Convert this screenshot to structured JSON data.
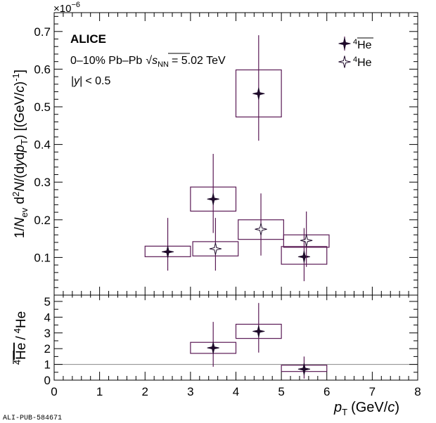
{
  "chart_data": [
    {
      "type": "scatter",
      "panel": "top",
      "title": "",
      "xlabel_main": "p",
      "xlabel_sub": "T",
      "xlabel_unit": "(GeV/",
      "xlabel_unit_c": "c",
      "xlabel_close": ")",
      "ylabel": "1/N_ev d^2N/(dy dp_T) [(GeV/c)^-1]",
      "y_multiplier": "×10",
      "y_multiplier_exp": "−6",
      "xlim": [
        0,
        8
      ],
      "ylim": [
        0,
        0.75
      ],
      "xticks": [
        "0",
        "1",
        "2",
        "3",
        "4",
        "5",
        "6",
        "7",
        "8"
      ],
      "yticks": [
        "0.1",
        "0.2",
        "0.3",
        "0.4",
        "0.5",
        "0.6",
        "0.7"
      ],
      "series": [
        {
          "name": "anti-4He",
          "legend_label": "He",
          "legend_sup": "4",
          "marker": "filled-star",
          "points": [
            {
              "x": 2.5,
              "y": 0.115,
              "stat_lo": 0.065,
              "stat_hi": 0.205,
              "sys_lo": 0.102,
              "sys_hi": 0.13,
              "bin_lo": 2.0,
              "bin_hi": 3.0
            },
            {
              "x": 3.5,
              "y": 0.255,
              "stat_lo": 0.165,
              "stat_hi": 0.375,
              "sys_lo": 0.223,
              "sys_hi": 0.287,
              "bin_lo": 3.0,
              "bin_hi": 4.0
            },
            {
              "x": 4.5,
              "y": 0.535,
              "stat_lo": 0.41,
              "stat_hi": 0.69,
              "sys_lo": 0.473,
              "sys_hi": 0.598,
              "bin_lo": 4.0,
              "bin_hi": 5.0
            },
            {
              "x": 5.5,
              "y": 0.102,
              "stat_lo": 0.037,
              "stat_hi": 0.178,
              "sys_lo": 0.082,
              "sys_hi": 0.129,
              "bin_lo": 5.0,
              "bin_hi": 6.0
            }
          ]
        },
        {
          "name": "4He",
          "legend_label": "He",
          "legend_sup": "4",
          "marker": "open-star",
          "points": [
            {
              "x": 3.55,
              "y": 0.123,
              "stat_lo": 0.065,
              "stat_hi": 0.205,
              "sys_lo": 0.104,
              "sys_hi": 0.142,
              "bin_lo": 3.05,
              "bin_hi": 4.05
            },
            {
              "x": 4.55,
              "y": 0.175,
              "stat_lo": 0.105,
              "stat_hi": 0.27,
              "sys_lo": 0.148,
              "sys_hi": 0.2,
              "bin_lo": 4.05,
              "bin_hi": 5.05
            },
            {
              "x": 5.55,
              "y": 0.145,
              "stat_lo": 0.075,
              "stat_hi": 0.222,
              "sys_lo": 0.127,
              "sys_hi": 0.16,
              "bin_lo": 5.05,
              "bin_hi": 6.05
            }
          ]
        }
      ]
    },
    {
      "type": "scatter",
      "panel": "bottom",
      "ylabel": "anti-4He / 4He",
      "xlim": [
        0,
        8
      ],
      "ylim": [
        0,
        5.4
      ],
      "yticks": [
        "0",
        "1",
        "2",
        "3",
        "4",
        "5"
      ],
      "reference_line": 1,
      "series": [
        {
          "name": "ratio",
          "marker": "filled-star",
          "points": [
            {
              "x": 3.5,
              "y": 2.05,
              "stat_lo": 0.85,
              "stat_hi": 3.7,
              "sys_lo": 1.7,
              "sys_hi": 2.4,
              "bin_lo": 3.0,
              "bin_hi": 4.0
            },
            {
              "x": 4.5,
              "y": 3.1,
              "stat_lo": 1.75,
              "stat_hi": 4.9,
              "sys_lo": 2.65,
              "sys_hi": 3.55,
              "bin_lo": 4.0,
              "bin_hi": 5.0
            },
            {
              "x": 5.5,
              "y": 0.7,
              "stat_lo": 0.1,
              "stat_hi": 1.5,
              "sys_lo": 0.55,
              "sys_hi": 0.95,
              "bin_lo": 5.0,
              "bin_hi": 6.0
            }
          ]
        }
      ]
    }
  ],
  "annotations": {
    "experiment": "ALICE",
    "system_prefix": "0–10% Pb–Pb",
    "sqrt_sym": "√",
    "s_var": "s",
    "nn_sub": "NN",
    "energy": "= 5.02 TeV",
    "rapidity_bar": "|",
    "rapidity_var": "y",
    "rapidity_cut": "< 0.5",
    "ratio_label_he": "He",
    "ratio_label_sup": "4",
    "ratio_slash": "/",
    "footer_id": "ALI-PUB-584671"
  },
  "ylabel_parts": {
    "one_over": "1/",
    "n": "N",
    "ev": "ev",
    "d2n": " d",
    "two": "2",
    "n2": "N",
    "slash_d": "/(d",
    "y": "y",
    "d": "d",
    "p": "p",
    "t": "T",
    "close": ")",
    "unit_open": " [(GeV/",
    "c": "c",
    "unit_close": ")",
    "minus_one": "-1",
    "bracket": "]"
  },
  "colors": {
    "marker": "#1e0a2a",
    "box": "#5a1a55",
    "errbar": "#5a1a55",
    "refline": "#888888"
  }
}
